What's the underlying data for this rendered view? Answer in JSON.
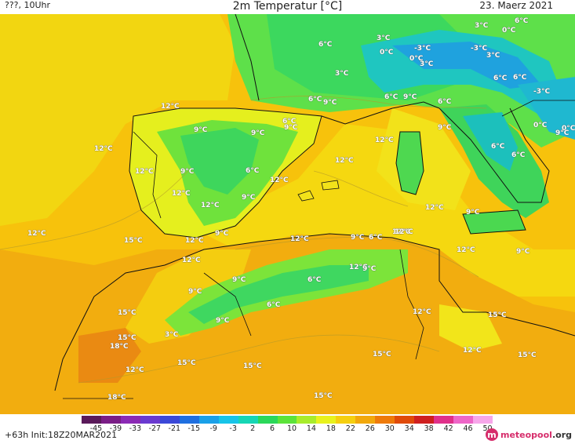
{
  "header": {
    "left": "???, 10Uhr",
    "title": "2m Temperatur [°C]",
    "right": "23. Maerz 2021"
  },
  "footer": {
    "run": "+63h Init:18Z20MAR2021",
    "logo_main": "meteopool",
    "logo_tld": ".org",
    "logo_mark": "m"
  },
  "legend": {
    "ticks": [
      "-45",
      "-39",
      "-33",
      "-27",
      "-21",
      "-15",
      "-9",
      "-3",
      "2",
      "6",
      "10",
      "14",
      "18",
      "22",
      "26",
      "30",
      "34",
      "38",
      "42",
      "46",
      "50"
    ],
    "colors": [
      "#5a1a5a",
      "#7a1d86",
      "#8b2ab5",
      "#6a3ad0",
      "#3b48d8",
      "#1f6fe0",
      "#1aa0e8",
      "#17c4e8",
      "#16d6b5",
      "#2bd85a",
      "#5ce33a",
      "#a8ec2c",
      "#e8f21e",
      "#f5cf10",
      "#f2a80c",
      "#ee7a0a",
      "#e04a0a",
      "#cf1f1f",
      "#e0308a",
      "#ee66c8",
      "#f7a6ea"
    ]
  },
  "palette": {
    "sea_warm": "#f7c20c",
    "sea_hot": "#f3a80e",
    "land_cold": "#3bd860",
    "land_mild": "#9be834",
    "land_warm": "#f1e915",
    "alps_cold": "#1fc0c8",
    "alps_colder": "#1fa0e0",
    "sahara": "#f0a80e",
    "sahara_hot": "#ea8a10"
  },
  "labels": [
    {
      "text": "6°C"
    },
    {
      "text": "3°C"
    },
    {
      "text": "0°C"
    },
    {
      "text": "-3°C"
    },
    {
      "text": "0°C"
    },
    {
      "text": "-3°C"
    },
    {
      "text": "3°C"
    },
    {
      "text": "6°C"
    },
    {
      "text": "0°C"
    },
    {
      "text": "3°C"
    },
    {
      "text": "3°C"
    },
    {
      "text": "6°C"
    },
    {
      "text": "3°C"
    },
    {
      "text": "6°C"
    },
    {
      "text": "6°C"
    },
    {
      "text": "-3°C"
    },
    {
      "text": "6°C"
    },
    {
      "text": "9°C"
    },
    {
      "text": "6°C"
    },
    {
      "text": "9°C"
    },
    {
      "text": "6°C"
    },
    {
      "text": "9°C"
    },
    {
      "text": "0°C"
    },
    {
      "text": "9°C"
    },
    {
      "text": "12°C"
    },
    {
      "text": "9°C"
    },
    {
      "text": "9°C"
    },
    {
      "text": "6°C"
    },
    {
      "text": "9°C"
    },
    {
      "text": "12°C"
    },
    {
      "text": "12°C"
    },
    {
      "text": "12°C"
    },
    {
      "text": "9°C"
    },
    {
      "text": "6°C"
    },
    {
      "text": "12°C"
    },
    {
      "text": "0°C"
    },
    {
      "text": "6°C"
    },
    {
      "text": "12°C"
    },
    {
      "text": "12°C"
    },
    {
      "text": "9°C"
    },
    {
      "text": "12°C"
    },
    {
      "text": "12°C"
    },
    {
      "text": "9°C"
    },
    {
      "text": "12°C"
    },
    {
      "text": "9°C"
    },
    {
      "text": "12°C"
    },
    {
      "text": "15°C"
    },
    {
      "text": "12°C"
    },
    {
      "text": "9°C"
    },
    {
      "text": "12°C"
    },
    {
      "text": "6°C"
    },
    {
      "text": "9°C"
    },
    {
      "text": "12°C"
    },
    {
      "text": "12°C"
    },
    {
      "text": "12°C"
    },
    {
      "text": "12°C"
    },
    {
      "text": "9°C"
    },
    {
      "text": "6°C"
    },
    {
      "text": "9°C"
    },
    {
      "text": "9°C"
    },
    {
      "text": "6°C"
    },
    {
      "text": "9°C"
    },
    {
      "text": "12°C"
    },
    {
      "text": "15°C"
    },
    {
      "text": "12°C"
    },
    {
      "text": "15°C"
    },
    {
      "text": "15°C"
    },
    {
      "text": "3°C"
    },
    {
      "text": "18°C"
    },
    {
      "text": "15°C"
    },
    {
      "text": "12°C"
    },
    {
      "text": "15°C"
    },
    {
      "text": "15°C"
    },
    {
      "text": "15°C"
    },
    {
      "text": "12°C"
    },
    {
      "text": "18°C"
    },
    {
      "text": "15°C"
    }
  ]
}
